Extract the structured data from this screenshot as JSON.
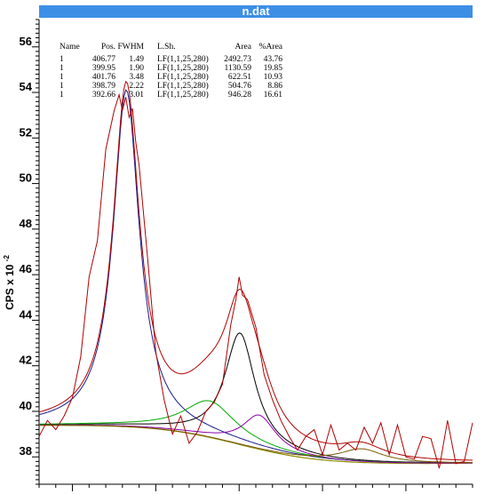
{
  "window": {
    "title": "n.dat"
  },
  "chart_data": {
    "type": "line",
    "title": "n.dat",
    "ylabel": "CPS x 10",
    "ylabel_exponent": "-2",
    "xlim": [
      412,
      386
    ],
    "ylim": [
      36.8,
      57.2
    ],
    "yticks": [
      38,
      40,
      42,
      44,
      46,
      48,
      50,
      52,
      54,
      56
    ],
    "xticks_major": [
      410,
      405,
      400,
      395,
      390
    ],
    "table": {
      "columns": [
        "Name",
        "Pos.",
        "FWHM",
        "L.Sh.",
        "Area",
        "%Area"
      ],
      "rows": [
        [
          "1",
          "406.77",
          "1.49",
          "LF(1,1,25,280)",
          "2492.73",
          "43.76"
        ],
        [
          "1",
          "399.95",
          "1.90",
          "LF(1,1,25,280)",
          "1130.59",
          "19.85"
        ],
        [
          "1",
          "401.76",
          "3.48",
          "LF(1,1,25,280)",
          "622.51",
          "10.93"
        ],
        [
          "1",
          "398.79",
          "2.22",
          "LF(1,1,25,280)",
          "504.76",
          "8.86"
        ],
        [
          "1",
          "392.66",
          "3.01",
          "LF(1,1,25,280)",
          "946.28",
          "16.61"
        ]
      ]
    },
    "colors": {
      "raw": "#b00000",
      "envelope": "#b00000",
      "background": "#8a8a00",
      "components": [
        "#1a1a8c",
        "#000000",
        "#00aa00",
        "#8a00aa",
        "#7a5a00"
      ]
    },
    "series": [
      {
        "name": "raw",
        "x": [
          412.0,
          411.5,
          411.0,
          410.5,
          410.0,
          409.5,
          409.0,
          408.5,
          408.0,
          407.5,
          407.2,
          407.0,
          406.8,
          406.6,
          406.4,
          406.2,
          406.0,
          405.5,
          405.0,
          404.5,
          404.0,
          403.5,
          403.0,
          402.5,
          402.0,
          401.5,
          401.0,
          400.5,
          400.2,
          400.0,
          399.8,
          399.5,
          399.0,
          398.5,
          398.0,
          397.5,
          397.0,
          396.5,
          396.0,
          395.5,
          395.0,
          394.5,
          394.0,
          393.5,
          393.0,
          392.5,
          392.0,
          391.5,
          391.0,
          390.5,
          390.0,
          389.5,
          389.0,
          388.5,
          388.0,
          387.5,
          387.0,
          386.5,
          386.0
        ],
        "y": [
          38.9,
          39.6,
          39.2,
          39.8,
          40.6,
          42.4,
          45.9,
          47.5,
          51.5,
          53.2,
          53.9,
          53.2,
          53.8,
          52.9,
          53.3,
          51.8,
          50.8,
          46.8,
          42.6,
          40.5,
          39.0,
          39.8,
          38.6,
          39.1,
          40.0,
          40.4,
          41.2,
          43.8,
          44.9,
          45.9,
          45.1,
          44.9,
          43.7,
          41.6,
          40.5,
          39.6,
          38.9,
          38.3,
          38.9,
          39.2,
          38.1,
          39.4,
          38.3,
          38.6,
          38.3,
          39.3,
          38.6,
          39.5,
          38.1,
          39.4,
          38.0,
          37.9,
          38.9,
          38.8,
          37.5,
          39.6,
          37.7,
          37.8,
          39.5
        ]
      }
    ]
  }
}
